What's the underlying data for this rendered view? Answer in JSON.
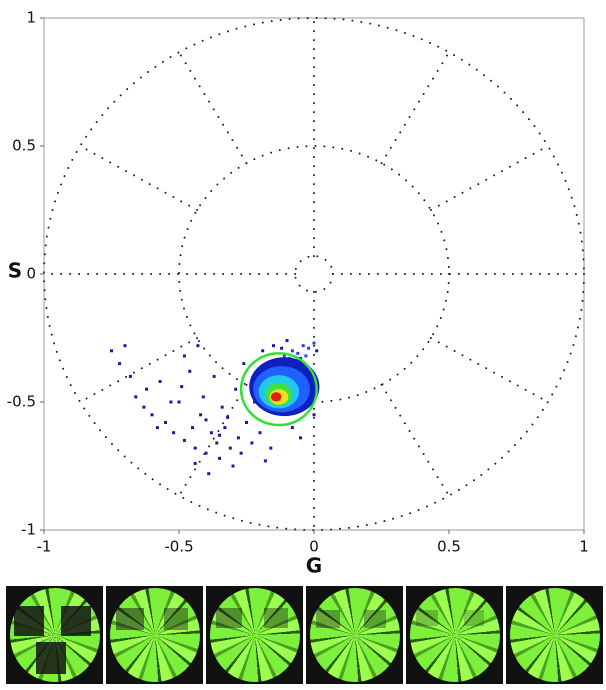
{
  "chart_data": {
    "type": "scatter",
    "xlabel": "G",
    "ylabel": "S",
    "xlim": [
      -1,
      1
    ],
    "ylim": [
      -1,
      1
    ],
    "xticks": [
      -1,
      -0.5,
      0,
      0.5,
      1
    ],
    "yticks": [
      -1,
      -0.5,
      0,
      0.5,
      1
    ],
    "polar_grid": {
      "radii": [
        1,
        0.5,
        0.07
      ],
      "spokes": 12,
      "color": "#1a1a2e"
    },
    "series": [
      {
        "color": "#1a1aa0",
        "x": [
          -0.75,
          -0.72,
          -0.7,
          -0.68,
          -0.66,
          -0.63,
          -0.6,
          -0.58,
          -0.55,
          -0.52,
          -0.5,
          -0.48,
          -0.45,
          -0.44,
          -0.42,
          -0.4,
          -0.38,
          -0.36,
          -0.35,
          -0.33,
          -0.31,
          -0.3,
          -0.28,
          -0.27,
          -0.25,
          -0.23,
          -0.2,
          -0.18,
          -0.16,
          -0.62,
          -0.57,
          -0.53,
          -0.49,
          -0.46,
          -0.41,
          -0.37,
          -0.34,
          -0.29,
          -0.26,
          -0.22,
          -0.19,
          -0.15,
          -0.1,
          -0.08,
          -0.05,
          0,
          0.01,
          -0.48,
          -0.43,
          -0.4,
          -0.35,
          -0.32,
          -0.05,
          -0.12,
          -0.44,
          -0.39
        ],
        "y": [
          -0.3,
          -0.35,
          -0.28,
          -0.4,
          -0.48,
          -0.52,
          -0.55,
          -0.6,
          -0.58,
          -0.62,
          -0.5,
          -0.65,
          -0.6,
          -0.68,
          -0.55,
          -0.7,
          -0.62,
          -0.66,
          -0.72,
          -0.6,
          -0.68,
          -0.75,
          -0.64,
          -0.7,
          -0.58,
          -0.66,
          -0.62,
          -0.73,
          -0.68,
          -0.45,
          -0.42,
          -0.5,
          -0.44,
          -0.38,
          -0.48,
          -0.4,
          -0.52,
          -0.45,
          -0.35,
          -0.5,
          -0.3,
          -0.28,
          -0.26,
          -0.6,
          -0.64,
          -0.55,
          -0.3,
          -0.32,
          -0.28,
          -0.57,
          -0.63,
          -0.56,
          -0.33,
          -0.29,
          -0.74,
          -0.78
        ]
      },
      {
        "color": "#2040ff",
        "x": [
          -0.08,
          -0.06,
          -0.03,
          -0.02,
          0,
          -0.09,
          -0.04,
          -0.11
        ],
        "y": [
          -0.3,
          -0.31,
          -0.32,
          -0.29,
          -0.27,
          -0.33,
          -0.28,
          -0.32
        ]
      }
    ],
    "density": [
      {
        "color": "#1020c0",
        "cx": -0.11,
        "cy": -0.44,
        "rx": 0.13,
        "ry": 0.115
      },
      {
        "color": "#2060ff",
        "cx": -0.12,
        "cy": -0.45,
        "rx": 0.105,
        "ry": 0.09
      },
      {
        "color": "#20c8f0",
        "cx": -0.13,
        "cy": -0.46,
        "rx": 0.075,
        "ry": 0.065
      },
      {
        "color": "#40e040",
        "cx": -0.13,
        "cy": -0.47,
        "rx": 0.05,
        "ry": 0.045
      },
      {
        "color": "#f0e020",
        "cx": -0.13,
        "cy": -0.48,
        "rx": 0.035,
        "ry": 0.03
      },
      {
        "color": "#e02010",
        "cx": -0.14,
        "cy": -0.48,
        "rx": 0.02,
        "ry": 0.018
      }
    ],
    "roi": {
      "color": "#30e030",
      "cx": -0.13,
      "cy": -0.45,
      "r": 0.14
    }
  }
}
